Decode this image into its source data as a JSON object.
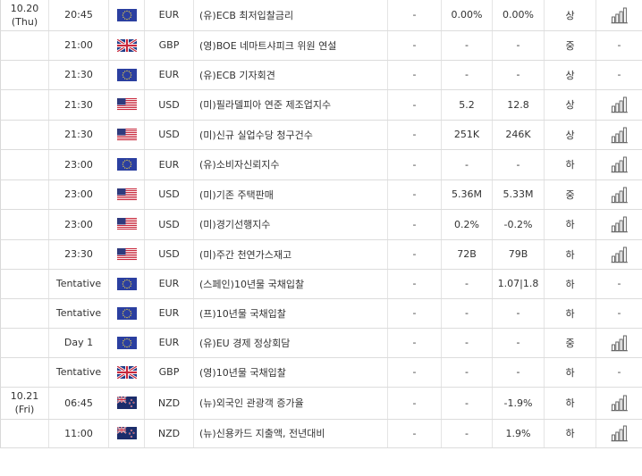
{
  "rows": [
    {
      "date": [
        "10.20",
        "(Thu)"
      ],
      "time": "20:45",
      "currency": "EUR",
      "flag": "eu-flag",
      "event": "(유)ECB 최저입찰금리",
      "actual": "-",
      "forecast": "0.00%",
      "previous": "0.00%",
      "importance": "상",
      "chart": "-"
    },
    {
      "date": [],
      "time": "21:00",
      "currency": "GBP",
      "flag": "uk-flag",
      "event": "(영)BOE 네마트샤피크 위원 연설",
      "actual": "-",
      "forecast": "-",
      "previous": "-",
      "importance": "중",
      "chart": "-"
    },
    {
      "date": [],
      "time": "21:30",
      "currency": "EUR",
      "flag": "eu-flag",
      "event": "(유)ECB 기자회견",
      "actual": "-",
      "forecast": "-",
      "previous": "-",
      "importance": "상",
      "chart": "-"
    },
    {
      "date": [],
      "time": "21:30",
      "currency": "USD",
      "flag": "us-flag",
      "event": "(미)필라델피아 연준 제조업지수",
      "actual": "-",
      "forecast": "5.2",
      "previous": "12.8",
      "importance": "상",
      "chart": "-"
    },
    {
      "date": [],
      "time": "21:30",
      "currency": "USD",
      "flag": "us-flag",
      "event": "(미)신규 실업수당 청구건수",
      "actual": "-",
      "forecast": "251K",
      "previous": "246K",
      "importance": "상",
      "chart": "-"
    },
    {
      "date": [],
      "time": "23:00",
      "currency": "EUR",
      "flag": "eu-flag",
      "event": "(유)소비자신뢰지수",
      "actual": "-",
      "forecast": "-",
      "previous": "-",
      "importance": "하",
      "chart": "-"
    },
    {
      "date": [],
      "time": "23:00",
      "currency": "USD",
      "flag": "us-flag",
      "event": "(미)기존 주택판매",
      "actual": "-",
      "forecast": "5.36M",
      "previous": "5.33M",
      "importance": "중",
      "chart": "-"
    },
    {
      "date": [],
      "time": "23:00",
      "currency": "USD",
      "flag": "us-flag",
      "event": "(미)경기선행지수",
      "actual": "-",
      "forecast": "0.2%",
      "previous": "-0.2%",
      "importance": "하",
      "chart": "-"
    },
    {
      "date": [],
      "time": "23:30",
      "currency": "USD",
      "flag": "us-flag",
      "event": "(미)주간 천연가스재고",
      "actual": "-",
      "forecast": "72B",
      "previous": "79B",
      "importance": "하",
      "chart": "-"
    },
    {
      "date": [],
      "time": "Tentative",
      "currency": "EUR",
      "flag": "eu-flag",
      "event": "(스페인)10년물 국채입찰",
      "actual": "-",
      "forecast": "-",
      "previous": "1.07|1.8",
      "importance": "하",
      "chart": "-"
    },
    {
      "date": [],
      "time": "Tentative",
      "currency": "EUR",
      "flag": "eu-flag",
      "event": "(프)10년물 국채입찰",
      "actual": "-",
      "forecast": "-",
      "previous": "-",
      "importance": "하",
      "chart": "-"
    },
    {
      "date": [],
      "time": "Day 1",
      "currency": "EUR",
      "flag": "eu-flag",
      "event": "(유)EU 경제 정상회담",
      "actual": "-",
      "forecast": "-",
      "previous": "-",
      "importance": "중",
      "chart": "-"
    },
    {
      "date": [],
      "time": "Tentative",
      "currency": "GBP",
      "flag": "uk-flag",
      "event": "(영)10년물 국채입찰",
      "actual": "-",
      "forecast": "-",
      "previous": "-",
      "importance": "하",
      "chart": "-"
    },
    {
      "date": [
        "10.21",
        "(Fri)"
      ],
      "time": "06:45",
      "currency": "NZD",
      "flag": "nz-flag",
      "event": "(뉴)외국인 관광객 증가율",
      "actual": "-",
      "forecast": "-",
      "previous": "-1.9%",
      "importance": "하",
      "chart": "-"
    },
    {
      "date": [],
      "time": "11:00",
      "currency": "NZD",
      "flag": "nz-flag",
      "event": "(뉴)신용카드 지출액, 전년대비",
      "actual": "-",
      "forecast": "-",
      "previous": "1.9%",
      "importance": "하",
      "chart": "-"
    }
  ],
  "chart_icon": "bar-chart-icon",
  "colors": {
    "border": "#dcdcdc",
    "text": "#333333",
    "eu_blue": "#2b3fa0",
    "us_red": "#c8283c",
    "uk_blue": "#1f3c88",
    "nz_blue": "#1c2d6b"
  }
}
